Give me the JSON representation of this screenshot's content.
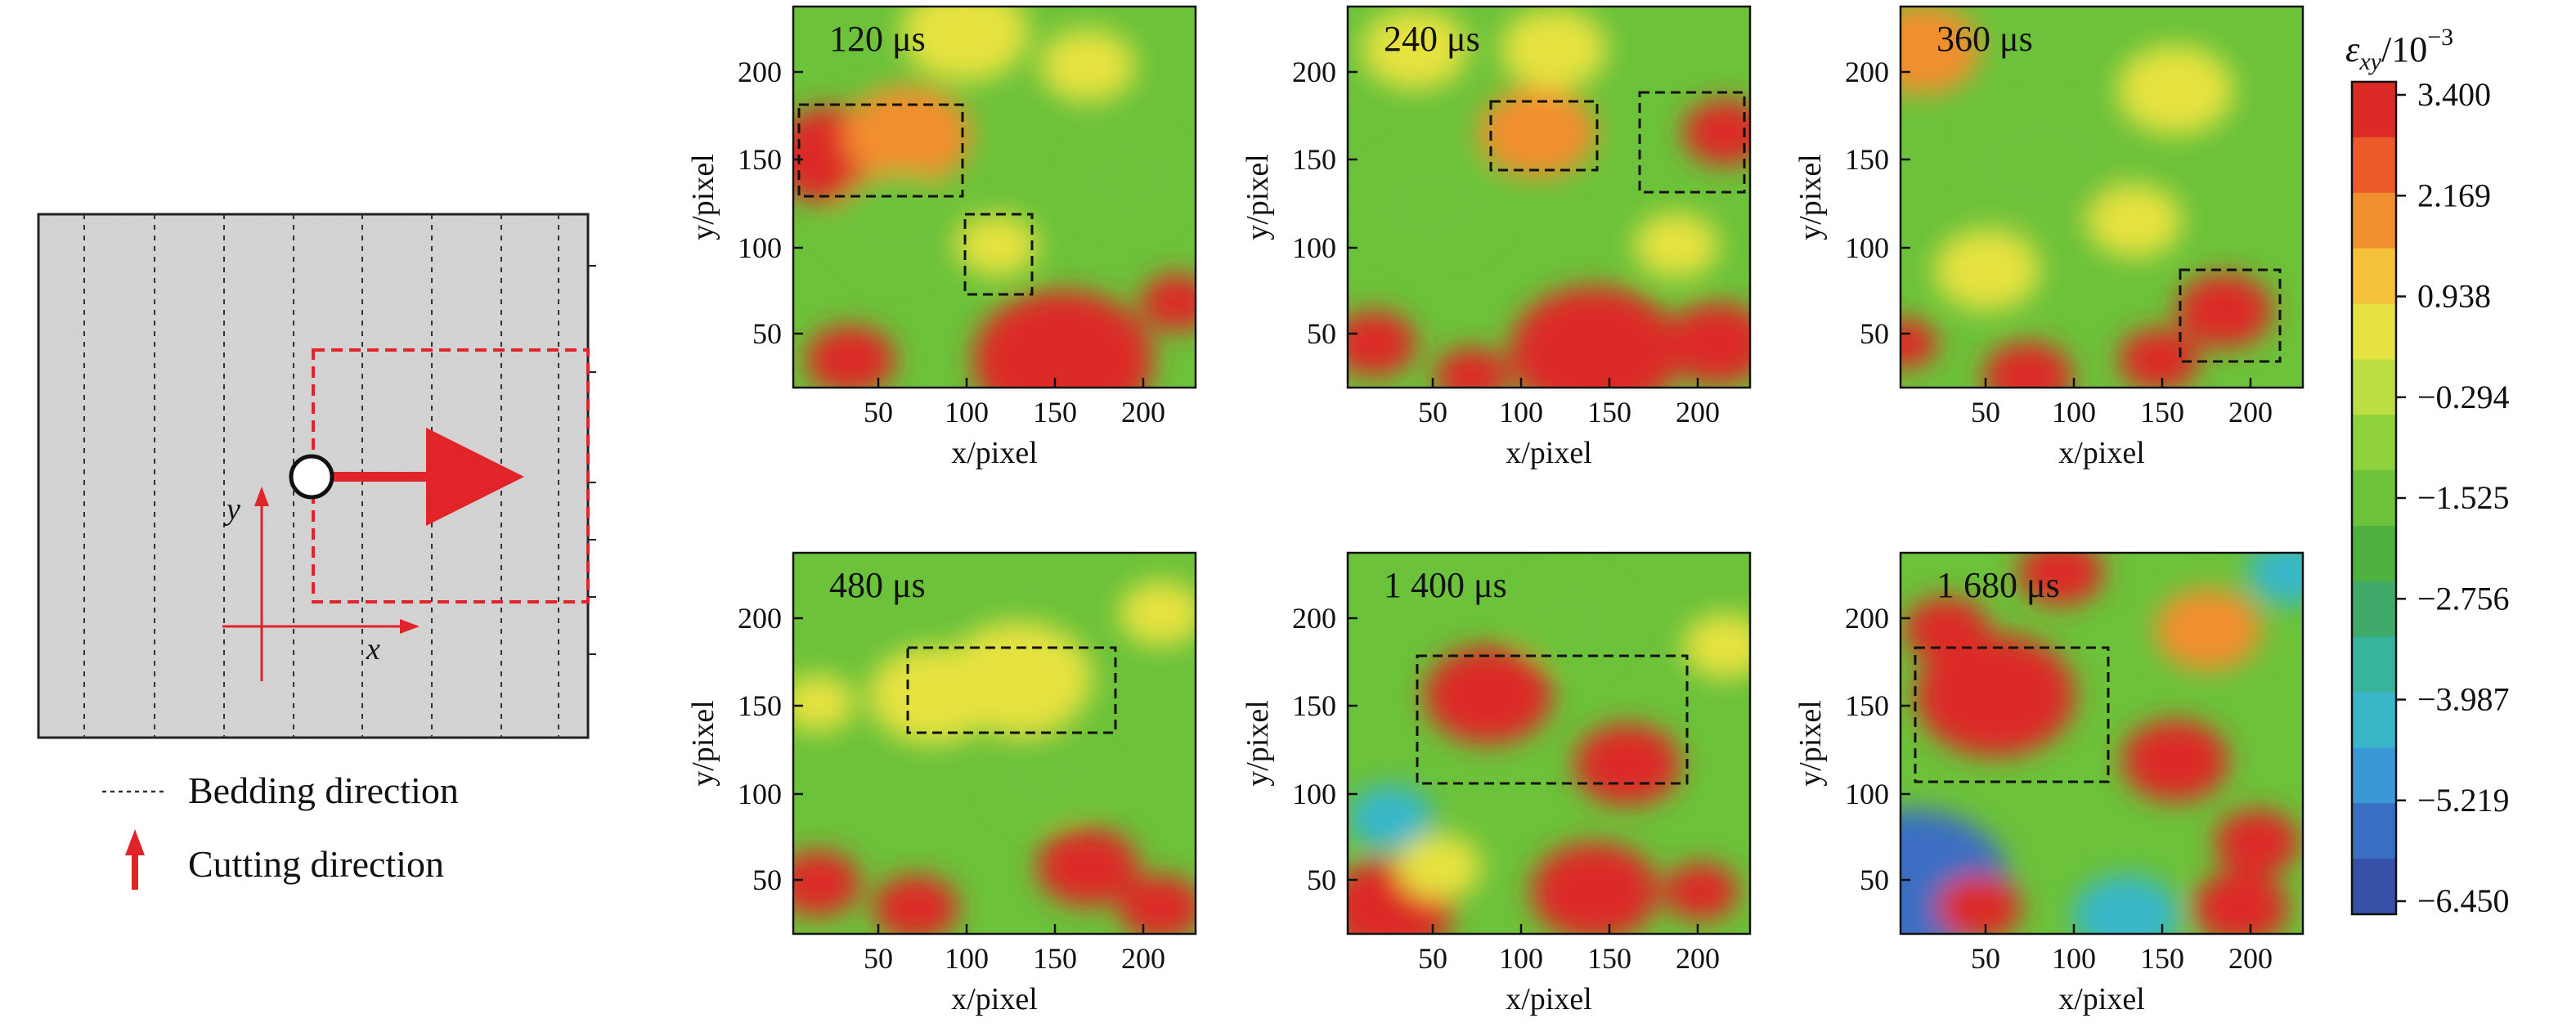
{
  "schematic": {
    "x_axis_label": "x",
    "y_axis_label": "y",
    "legend": [
      {
        "symbol": "dotted-line",
        "text": "Bedding direction"
      },
      {
        "symbol": "red-arrow",
        "text": "Cutting direction"
      }
    ]
  },
  "panels": [
    {
      "time": "120 μs"
    },
    {
      "time": "240 μs"
    },
    {
      "time": "360 μs"
    },
    {
      "time": "480 μs"
    },
    {
      "time": "1 400 μs"
    },
    {
      "time": "1 680 μs"
    }
  ],
  "axes": {
    "xlabel": "x/pixel",
    "ylabel": "y/pixel",
    "x_ticks": [
      "50",
      "100",
      "150",
      "200"
    ],
    "y_ticks": [
      "50",
      "100",
      "150",
      "200"
    ]
  },
  "colorbar": {
    "label": "εxy/10−3",
    "ticks": [
      "3.400",
      "2.169",
      "0.938",
      "−0.294",
      "−1.525",
      "−2.756",
      "−3.987",
      "−5.219",
      "−6.450"
    ],
    "colors": [
      "#dc2b26",
      "#ec5a2a",
      "#f28f2e",
      "#f5c23a",
      "#e5e241",
      "#bcde42",
      "#8fd13b",
      "#6cc23a",
      "#4fb13f",
      "#3faa69",
      "#39b49c",
      "#39b7c9",
      "#3b97d6",
      "#3a6ec2",
      "#3751a8"
    ]
  }
}
